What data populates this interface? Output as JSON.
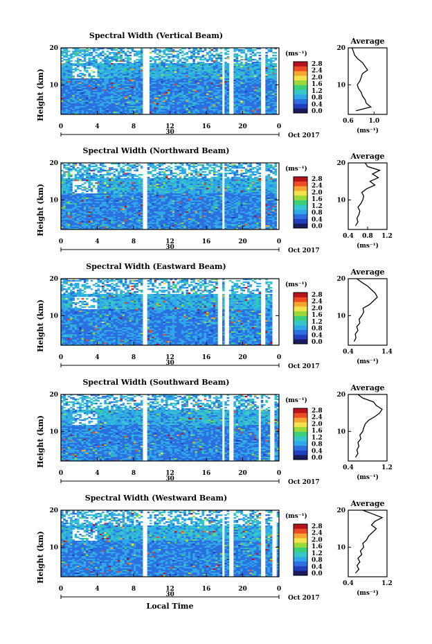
{
  "chart_data": [
    {
      "type": "heatmap",
      "title": "Spectral Width (Vertical Beam)",
      "ylabel": "Height (km)",
      "y_ticks": [
        "10",
        "20"
      ],
      "x_ticks": [
        "0",
        "4",
        "8",
        "12",
        "16",
        "20",
        "0"
      ],
      "date_day": "30",
      "date_label": "Oct 2017",
      "colorbar_unit": "(ms⁻¹)",
      "colorbar_ticks": [
        "0.0",
        "0.4",
        "0.8",
        "1.2",
        "1.6",
        "2.0",
        "2.4",
        "2.8"
      ],
      "average_title": "Average",
      "average_xlabel": "(ms⁻¹)",
      "average_x_ticks": [
        "0.6",
        "1.0"
      ],
      "average_xlim": [
        0.6,
        1.2
      ],
      "average_y_ticks": [
        "10",
        "20"
      ],
      "ylim": [
        2,
        20
      ],
      "average_profile": {
        "height": [
          3,
          4,
          5,
          6,
          7,
          8,
          9,
          10,
          11,
          12,
          13,
          14,
          15,
          16,
          17,
          18,
          19,
          20
        ],
        "value": [
          0.72,
          0.95,
          0.88,
          0.86,
          0.82,
          0.8,
          0.76,
          0.74,
          0.78,
          0.8,
          0.82,
          0.9,
          0.86,
          0.82,
          0.75,
          0.7,
          0.68,
          0.66
        ]
      },
      "gaps_hours": [
        [
          5.8,
          6.0
        ],
        [
          9.0,
          9.6
        ],
        [
          17.6,
          18.0
        ],
        [
          18.4,
          18.8
        ],
        [
          21.8,
          22.5
        ],
        [
          23.6,
          24
        ]
      ]
    },
    {
      "type": "heatmap",
      "title": "Spectral Width (Northward Beam)",
      "ylabel": "Height (km)",
      "y_ticks": [
        "10",
        "20"
      ],
      "x_ticks": [
        "0",
        "4",
        "8",
        "12",
        "16",
        "20",
        "0"
      ],
      "date_day": "30",
      "date_label": "Oct 2017",
      "colorbar_unit": "(ms⁻¹)",
      "colorbar_ticks": [
        "0.0",
        "0.4",
        "0.8",
        "1.2",
        "1.6",
        "2.0",
        "2.4",
        "2.8"
      ],
      "average_title": "Average",
      "average_xlabel": "(ms⁻¹)",
      "average_x_ticks": [
        "0.4",
        "0.8",
        "1.2"
      ],
      "average_xlim": [
        0.4,
        1.2
      ],
      "average_y_ticks": [
        "10",
        "20"
      ],
      "ylim": [
        2,
        20
      ],
      "average_profile": {
        "height": [
          3,
          4,
          5,
          6,
          7,
          8,
          9,
          10,
          11,
          12,
          13,
          14,
          15,
          16,
          17,
          18,
          19,
          20
        ],
        "value": [
          0.55,
          0.6,
          0.58,
          0.62,
          0.64,
          0.6,
          0.66,
          0.7,
          0.72,
          0.68,
          0.78,
          0.95,
          0.85,
          1.02,
          0.9,
          1.05,
          0.8,
          0.75
        ]
      },
      "gaps_hours": [
        [
          5.8,
          6.0
        ],
        [
          9.0,
          9.4
        ],
        [
          17.6,
          18.0
        ],
        [
          21.8,
          22.4
        ],
        [
          23.6,
          24
        ]
      ]
    },
    {
      "type": "heatmap",
      "title": "Spectral Width (Eastward Beam)",
      "ylabel": "Height (km)",
      "y_ticks": [
        "10",
        "20"
      ],
      "x_ticks": [
        "0",
        "4",
        "8",
        "12",
        "16",
        "20",
        "0"
      ],
      "date_day": "30",
      "date_label": "Oct 2017",
      "colorbar_unit": "(ms⁻¹)",
      "colorbar_ticks": [
        "0.0",
        "0.4",
        "0.8",
        "1.2",
        "1.6",
        "2.0",
        "2.4",
        "2.8"
      ],
      "average_title": "Average",
      "average_xlabel": "(ms⁻¹)",
      "average_x_ticks": [
        "0.4",
        "1.4"
      ],
      "average_xlim": [
        0.4,
        1.4
      ],
      "average_y_ticks": [
        "10",
        "20"
      ],
      "ylim": [
        2,
        20
      ],
      "average_profile": {
        "height": [
          3,
          4,
          5,
          6,
          7,
          8,
          9,
          10,
          11,
          12,
          13,
          14,
          15,
          16,
          17,
          18,
          19,
          20
        ],
        "value": [
          0.55,
          0.6,
          0.58,
          0.65,
          0.62,
          0.7,
          0.68,
          0.75,
          0.8,
          0.78,
          0.95,
          1.05,
          1.15,
          1.1,
          1.0,
          0.9,
          0.75,
          0.62
        ]
      },
      "gaps_hours": [
        [
          5.8,
          6.0
        ],
        [
          9.0,
          9.4
        ],
        [
          17.2,
          17.6
        ],
        [
          18.0,
          18.4
        ],
        [
          21.8,
          22.4
        ],
        [
          23.2,
          24
        ]
      ]
    },
    {
      "type": "heatmap",
      "title": "Spectral Width (Southward Beam)",
      "ylabel": "Height (km)",
      "y_ticks": [
        "10",
        "20"
      ],
      "x_ticks": [
        "0",
        "4",
        "8",
        "12",
        "16",
        "20",
        "0"
      ],
      "date_day": "30",
      "date_label": "Oct 2017",
      "colorbar_unit": "(ms⁻¹)",
      "colorbar_ticks": [
        "0.0",
        "0.4",
        "0.8",
        "1.2",
        "1.6",
        "2.0",
        "2.4",
        "2.8"
      ],
      "average_title": "Average",
      "average_xlabel": "(ms⁻¹)",
      "average_x_ticks": [
        "0.4",
        "1.2"
      ],
      "average_xlim": [
        0.4,
        1.2
      ],
      "average_y_ticks": [
        "10",
        "20"
      ],
      "ylim": [
        2,
        20
      ],
      "average_profile": {
        "height": [
          3,
          4,
          5,
          6,
          7,
          8,
          9,
          10,
          11,
          12,
          13,
          14,
          15,
          16,
          17,
          18,
          19,
          20
        ],
        "value": [
          0.55,
          0.6,
          0.58,
          0.62,
          0.6,
          0.66,
          0.64,
          0.7,
          0.72,
          0.75,
          0.82,
          0.95,
          1.05,
          1.1,
          0.98,
          0.92,
          0.7,
          0.6
        ]
      },
      "gaps_hours": [
        [
          5.8,
          6.0
        ],
        [
          9.0,
          9.4
        ],
        [
          17.6,
          18.0
        ],
        [
          18.4,
          18.8
        ],
        [
          21.6,
          22.0
        ],
        [
          23.0,
          23.4
        ]
      ]
    },
    {
      "type": "heatmap",
      "title": "Spectral Width (Westward Beam)",
      "ylabel": "Height (km)",
      "y_ticks": [
        "10",
        "20"
      ],
      "x_ticks": [
        "0",
        "4",
        "8",
        "12",
        "16",
        "20",
        "0"
      ],
      "date_day": "30",
      "date_label": "Oct 2017",
      "xlabel": "Local Time",
      "colorbar_unit": "(ms⁻¹)",
      "colorbar_ticks": [
        "0.0",
        "0.4",
        "0.8",
        "1.2",
        "1.6",
        "2.0",
        "2.4",
        "2.8"
      ],
      "average_title": "Average",
      "average_xlabel": "(ms⁻¹)",
      "average_x_ticks": [
        "0.4",
        "1.2"
      ],
      "average_xlim": [
        0.4,
        1.2
      ],
      "average_y_ticks": [
        "10",
        "20"
      ],
      "ylim": [
        2,
        20
      ],
      "average_profile": {
        "height": [
          3,
          4,
          5,
          6,
          7,
          8,
          9,
          10,
          11,
          12,
          13,
          14,
          15,
          16,
          17,
          18,
          19,
          20
        ],
        "value": [
          0.55,
          0.62,
          0.58,
          0.64,
          0.6,
          0.68,
          0.65,
          0.72,
          0.7,
          0.78,
          0.82,
          0.9,
          0.98,
          0.88,
          0.95,
          1.1,
          0.9,
          0.7
        ]
      },
      "gaps_hours": [
        [
          5.8,
          6.0
        ],
        [
          9.0,
          9.4
        ],
        [
          17.6,
          18.0
        ],
        [
          18.4,
          18.8
        ],
        [
          21.8,
          22.4
        ],
        [
          23.2,
          23.6
        ]
      ]
    }
  ],
  "colorscale": [
    "#1a1a5e",
    "#1f3fbf",
    "#2b6fe0",
    "#2fa8e8",
    "#35c8c8",
    "#3ccf7a",
    "#9bd83a",
    "#f2e34a",
    "#f7a531",
    "#ee4a24",
    "#b5141b"
  ]
}
